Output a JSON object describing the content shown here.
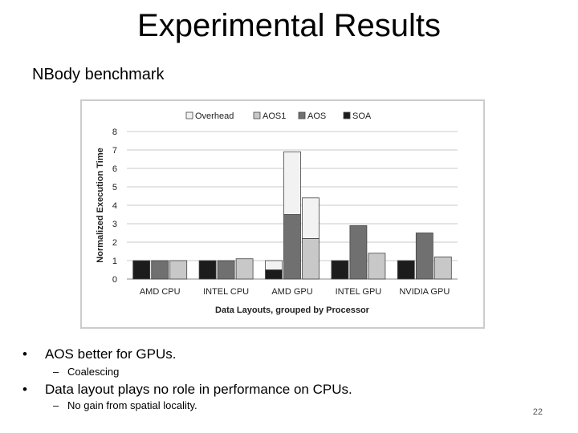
{
  "slide": {
    "title": "Experimental Results",
    "subtitle": "NBody benchmark",
    "bullets": [
      {
        "text": "AOS better for GPUs.",
        "sub": "Coalescing",
        "marker": "•",
        "sub_marker": "–"
      },
      {
        "text": "Data layout plays no role in performance on CPUs.",
        "sub": "No gain from spatial locality.",
        "marker": "•",
        "sub_marker": "–"
      }
    ],
    "page_number": "22"
  },
  "chart_data": {
    "type": "bar",
    "stacked": true,
    "title": "",
    "xlabel": "Data Layouts, grouped by Processor",
    "ylabel": "Normalized Execution Time",
    "ylim": [
      0,
      8
    ],
    "yticks": [
      "0",
      "1",
      "2",
      "3",
      "4",
      "5",
      "6",
      "7",
      "8"
    ],
    "grid": true,
    "legend_position": "top",
    "legend": [
      {
        "name": "Overhead",
        "color": "#f2f2f2"
      },
      {
        "name": "AOS1",
        "color": "#c8c8c8"
      },
      {
        "name": "AOS",
        "color": "#707070"
      },
      {
        "name": "SOA",
        "color": "#1c1c1c"
      }
    ],
    "groups": [
      {
        "label": "AMD CPU",
        "bars": [
          {
            "layout": "SOA",
            "base": 1.0,
            "overhead": 0
          },
          {
            "layout": "AOS",
            "base": 1.0,
            "overhead": 0
          },
          {
            "layout": "AOS1",
            "base": 1.0,
            "overhead": 0
          }
        ]
      },
      {
        "label": "INTEL CPU",
        "bars": [
          {
            "layout": "SOA",
            "base": 1.0,
            "overhead": 0
          },
          {
            "layout": "AOS",
            "base": 1.0,
            "overhead": 0
          },
          {
            "layout": "AOS1",
            "base": 1.1,
            "overhead": 0
          }
        ]
      },
      {
        "label": "AMD GPU",
        "bars": [
          {
            "layout": "SOA",
            "base": 0.5,
            "overhead": 0.5
          },
          {
            "layout": "AOS",
            "base": 3.5,
            "overhead": 3.4
          },
          {
            "layout": "AOS1",
            "base": 2.2,
            "overhead": 2.2
          }
        ]
      },
      {
        "label": "INTEL GPU",
        "bars": [
          {
            "layout": "SOA",
            "base": 1.0,
            "overhead": 0
          },
          {
            "layout": "AOS",
            "base": 2.9,
            "overhead": 0
          },
          {
            "layout": "AOS1",
            "base": 1.4,
            "overhead": 0
          }
        ]
      },
      {
        "label": "NVIDIA GPU",
        "bars": [
          {
            "layout": "SOA",
            "base": 1.0,
            "overhead": 0
          },
          {
            "layout": "AOS",
            "base": 2.5,
            "overhead": 0
          },
          {
            "layout": "AOS1",
            "base": 1.2,
            "overhead": 0
          }
        ]
      }
    ]
  }
}
